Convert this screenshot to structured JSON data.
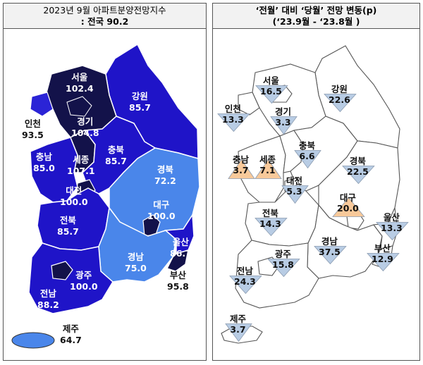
{
  "left": {
    "title_line1": "2023년 9월 아파트분양전망지수",
    "title_line2": ": 전국 90.2",
    "regions": [
      {
        "name": "서울",
        "value": "102.4"
      },
      {
        "name": "강원",
        "value": "85.7"
      },
      {
        "name": "인천",
        "value": "93.5"
      },
      {
        "name": "경기",
        "value": "104.8"
      },
      {
        "name": "충남",
        "value": "85.0"
      },
      {
        "name": "세종",
        "value": "107.1"
      },
      {
        "name": "충북",
        "value": "85.7"
      },
      {
        "name": "경북",
        "value": "72.2"
      },
      {
        "name": "대전",
        "value": "100.0"
      },
      {
        "name": "대구",
        "value": "100.0"
      },
      {
        "name": "전북",
        "value": "85.7"
      },
      {
        "name": "울산",
        "value": "86.7"
      },
      {
        "name": "경남",
        "value": "75.0"
      },
      {
        "name": "광주",
        "value": "100.0"
      },
      {
        "name": "부산",
        "value": "95.8"
      },
      {
        "name": "전남",
        "value": "88.2"
      },
      {
        "name": "제주",
        "value": "64.7"
      }
    ],
    "colors": {
      "dark": "#13124a",
      "blue": "#1f14c8",
      "light": "#4a86ea",
      "mid": "#2b24d6"
    }
  },
  "right": {
    "title_line1": "‘전월’ 대비 ‘당월’ 전망 변동(p)",
    "title_line2": "(‘23.9월 - ‘23.8월 )",
    "regions": [
      {
        "name": "서울",
        "value": "16.5",
        "direction": "down"
      },
      {
        "name": "강원",
        "value": "22.6",
        "direction": "down"
      },
      {
        "name": "인천",
        "value": "13.3",
        "direction": "down"
      },
      {
        "name": "경기",
        "value": "3.3",
        "direction": "down"
      },
      {
        "name": "충북",
        "value": "6.6",
        "direction": "down"
      },
      {
        "name": "충남",
        "value": "3.7",
        "direction": "up"
      },
      {
        "name": "세종",
        "value": "7.1",
        "direction": "up"
      },
      {
        "name": "경북",
        "value": "22.5",
        "direction": "down"
      },
      {
        "name": "대전",
        "value": "5.3",
        "direction": "down"
      },
      {
        "name": "대구",
        "value": "20.0",
        "direction": "up"
      },
      {
        "name": "전북",
        "value": "14.3",
        "direction": "down"
      },
      {
        "name": "울산",
        "value": "13.3",
        "direction": "down"
      },
      {
        "name": "부산",
        "value": "12.9",
        "direction": "down"
      },
      {
        "name": "광주",
        "value": "15.8",
        "direction": "down"
      },
      {
        "name": "경남",
        "value": "37.5",
        "direction": "down"
      },
      {
        "name": "전남",
        "value": "24.3",
        "direction": "down"
      },
      {
        "name": "제주",
        "value": "3.7",
        "direction": "down"
      }
    ],
    "colors": {
      "down": "#b8cce4",
      "up": "#f8c99a",
      "outline": "#444444"
    }
  }
}
